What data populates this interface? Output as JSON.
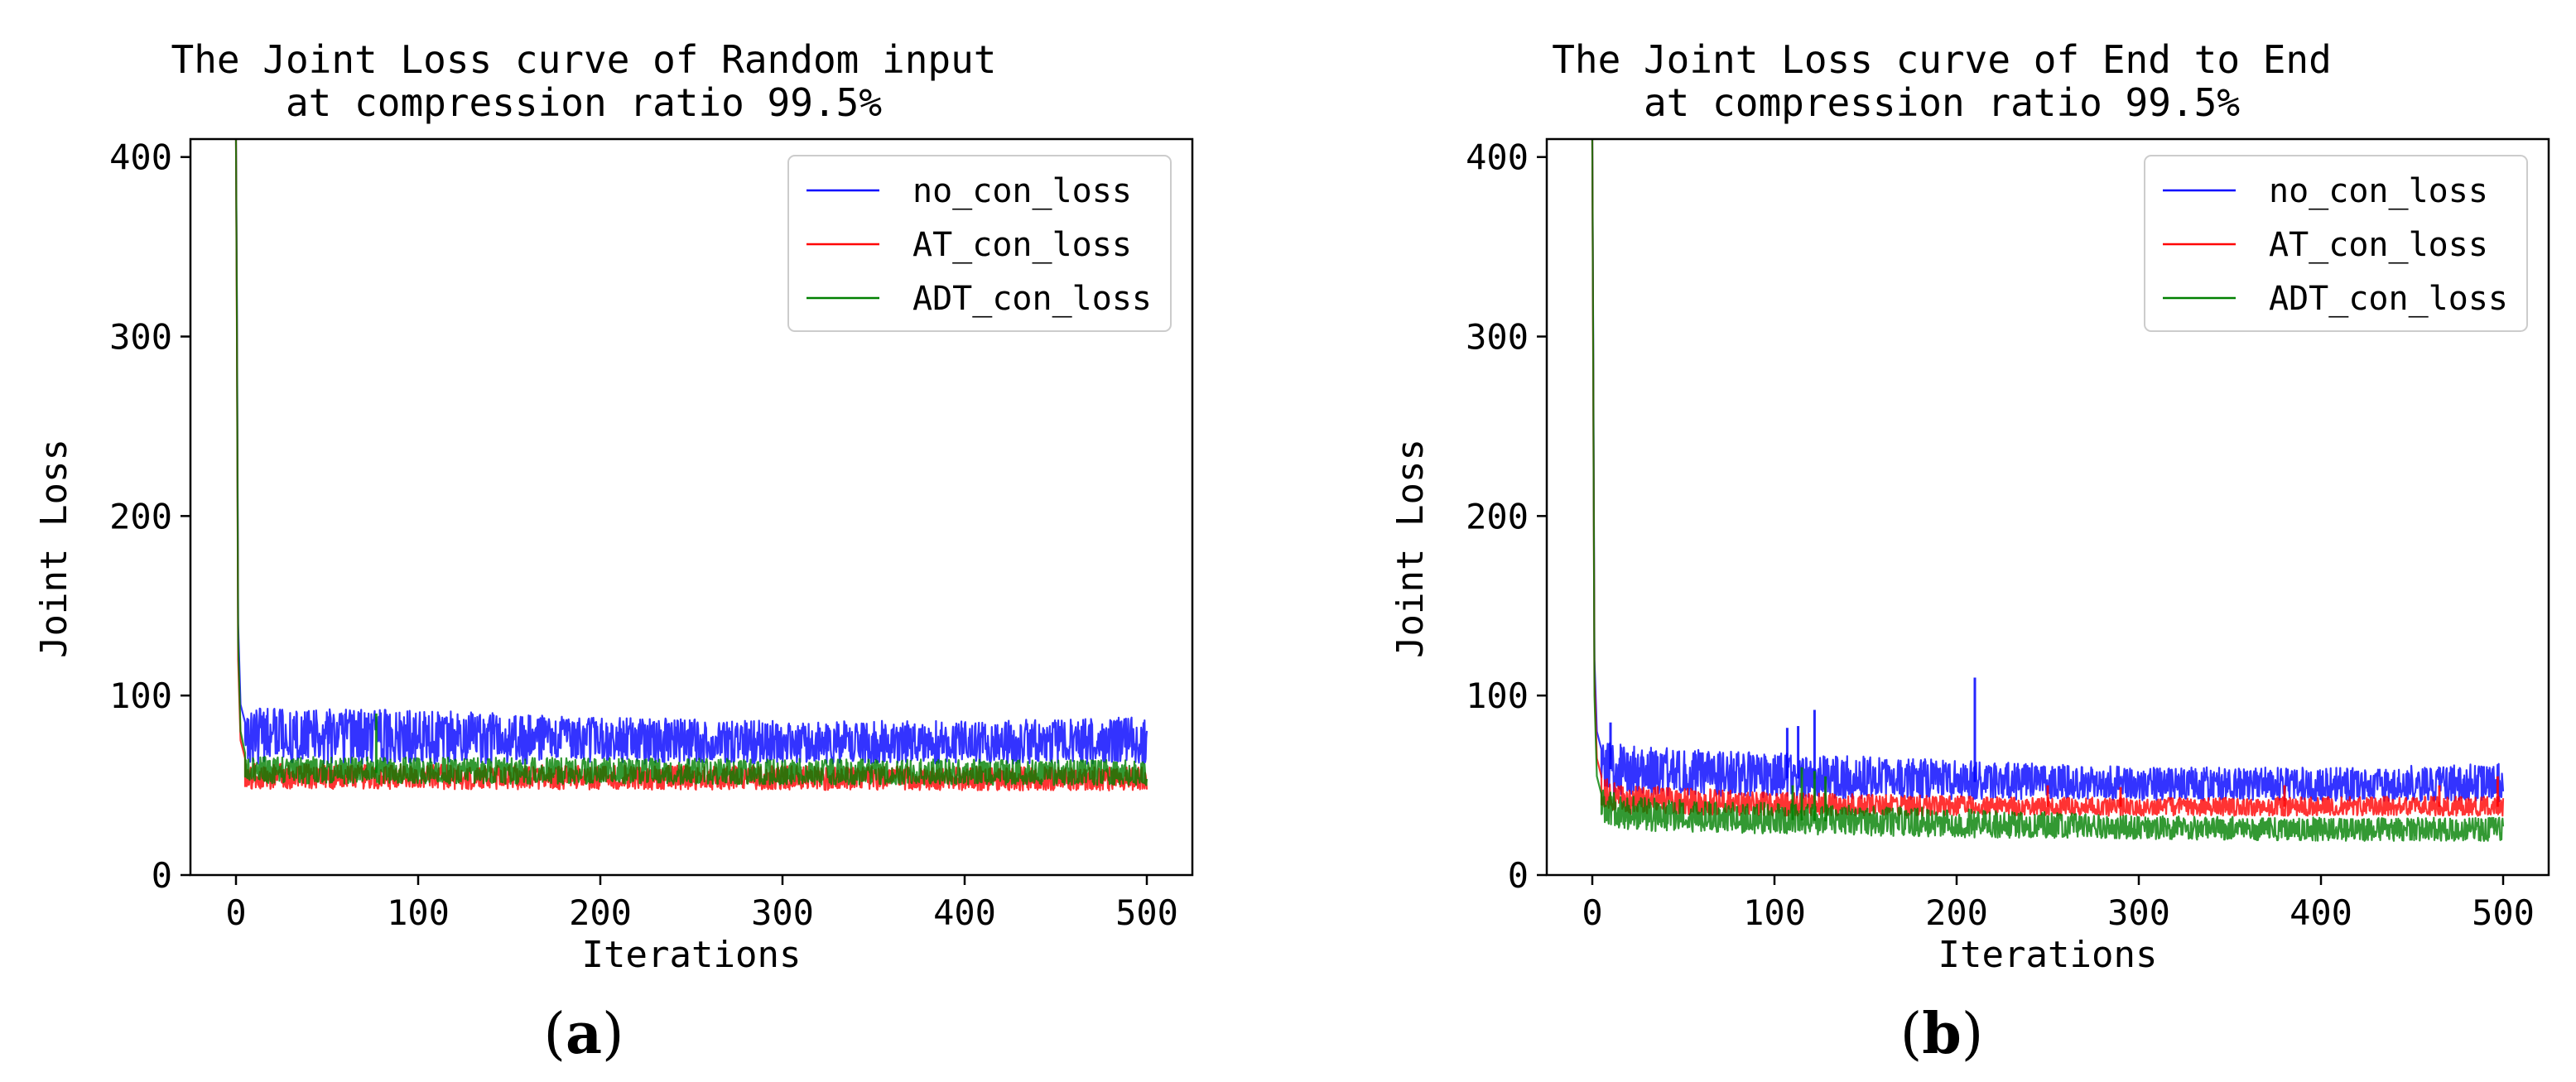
{
  "panels": [
    {
      "panel_label_open": "(",
      "panel_label_letter": "a",
      "panel_label_close": ")",
      "chart_data": {
        "type": "line",
        "title_line1": "The Joint Loss curve of Random input",
        "title_line2": "at compression ratio 99.5%",
        "xlabel": "Iterations",
        "ylabel": "Joint Loss",
        "xlim": [
          -25,
          525
        ],
        "ylim": [
          0,
          410
        ],
        "xticks": [
          0,
          100,
          200,
          300,
          400,
          500
        ],
        "yticks": [
          0,
          100,
          200,
          300,
          400
        ],
        "grid": false,
        "legend_position": "top-right",
        "series": [
          {
            "name": "no_con_loss",
            "color": "#0000ff",
            "start_points": [
              [
                0,
                410
              ],
              [
                0.5,
                320
              ],
              [
                1.2,
                140
              ],
              [
                2.5,
                95
              ],
              [
                5,
                85
              ]
            ],
            "band_center": [
              [
                5,
                80
              ],
              [
                100,
                77
              ],
              [
                200,
                75
              ],
              [
                300,
                74
              ],
              [
                400,
                73
              ],
              [
                500,
                73
              ]
            ],
            "band_low": [
              [
                5,
                62
              ],
              [
                500,
                62
              ]
            ],
            "band_high": [
              [
                5,
                93
              ],
              [
                100,
                92
              ],
              [
                200,
                88
              ],
              [
                300,
                86
              ],
              [
                400,
                86
              ],
              [
                500,
                88
              ]
            ],
            "spikes": []
          },
          {
            "name": "AT_con_loss",
            "color": "#ff0000",
            "start_points": [
              [
                0,
                410
              ],
              [
                0.5,
                300
              ],
              [
                1.2,
                120
              ],
              [
                2.5,
                75
              ],
              [
                5,
                65
              ]
            ],
            "band_center": [
              [
                5,
                55
              ],
              [
                500,
                53
              ]
            ],
            "band_low": [
              [
                5,
                48
              ],
              [
                500,
                47
              ]
            ],
            "band_high": [
              [
                5,
                62
              ],
              [
                500,
                60
              ]
            ],
            "spikes": []
          },
          {
            "name": "ADT_con_loss",
            "color": "#008000",
            "start_points": [
              [
                0,
                410
              ],
              [
                0.5,
                310
              ],
              [
                1.2,
                130
              ],
              [
                2.5,
                80
              ],
              [
                5,
                68
              ]
            ],
            "band_center": [
              [
                5,
                57
              ],
              [
                500,
                56
              ]
            ],
            "band_low": [
              [
                5,
                51
              ],
              [
                500,
                50
              ]
            ],
            "band_high": [
              [
                5,
                66
              ],
              [
                500,
                64
              ]
            ],
            "spikes": [
              [
                77,
                90
              ]
            ]
          }
        ]
      }
    },
    {
      "panel_label_open": "(",
      "panel_label_letter": "b",
      "panel_label_close": ")",
      "chart_data": {
        "type": "line",
        "title_line1": "The Joint Loss curve of End to End",
        "title_line2": "at compression ratio 99.5%",
        "xlabel": "Iterations",
        "ylabel": "Joint Loss",
        "xlim": [
          -25,
          525
        ],
        "ylim": [
          0,
          410
        ],
        "xticks": [
          0,
          100,
          200,
          300,
          400,
          500
        ],
        "yticks": [
          0,
          100,
          200,
          300,
          400
        ],
        "grid": false,
        "legend_position": "top-right",
        "series": [
          {
            "name": "no_con_loss",
            "color": "#0000ff",
            "start_points": [
              [
                0,
                410
              ],
              [
                0.5,
                300
              ],
              [
                1.2,
                120
              ],
              [
                2.5,
                80
              ],
              [
                5,
                70
              ]
            ],
            "band_center": [
              [
                5,
                60
              ],
              [
                20,
                57
              ],
              [
                50,
                55
              ],
              [
                100,
                54
              ],
              [
                200,
                52
              ],
              [
                300,
                50
              ],
              [
                400,
                50
              ],
              [
                500,
                50
              ]
            ],
            "band_low": [
              [
                5,
                45
              ],
              [
                100,
                43
              ],
              [
                200,
                42
              ],
              [
                500,
                41
              ]
            ],
            "band_high": [
              [
                5,
                75
              ],
              [
                20,
                72
              ],
              [
                100,
                68
              ],
              [
                200,
                64
              ],
              [
                300,
                60
              ],
              [
                400,
                60
              ],
              [
                500,
                62
              ]
            ],
            "spikes": [
              [
                10,
                85
              ],
              [
                107,
                82
              ],
              [
                113,
                83
              ],
              [
                122,
                92
              ],
              [
                210,
                110
              ]
            ]
          },
          {
            "name": "AT_con_loss",
            "color": "#ff0000",
            "start_points": [
              [
                0,
                410
              ],
              [
                0.5,
                280
              ],
              [
                1.2,
                110
              ],
              [
                2.5,
                65
              ],
              [
                5,
                55
              ]
            ],
            "band_center": [
              [
                5,
                46
              ],
              [
                20,
                42
              ],
              [
                50,
                40
              ],
              [
                100,
                39
              ],
              [
                200,
                38
              ],
              [
                300,
                38
              ],
              [
                500,
                38
              ]
            ],
            "band_low": [
              [
                5,
                38
              ],
              [
                20,
                34
              ],
              [
                100,
                33
              ],
              [
                500,
                33
              ]
            ],
            "band_high": [
              [
                5,
                55
              ],
              [
                20,
                50
              ],
              [
                100,
                46
              ],
              [
                200,
                44
              ],
              [
                300,
                43
              ],
              [
                500,
                44
              ]
            ],
            "spikes": [
              [
                250,
                50
              ],
              [
                290,
                49
              ],
              [
                380,
                50
              ],
              [
                465,
                50
              ],
              [
                497,
                55
              ]
            ]
          },
          {
            "name": "ADT_con_loss",
            "color": "#008000",
            "start_points": [
              [
                0,
                410
              ],
              [
                0.5,
                290
              ],
              [
                1.2,
                100
              ],
              [
                2.5,
                55
              ],
              [
                5,
                45
              ]
            ],
            "band_center": [
              [
                5,
                37
              ],
              [
                20,
                34
              ],
              [
                50,
                32
              ],
              [
                100,
                31
              ],
              [
                150,
                29
              ],
              [
                200,
                27
              ],
              [
                300,
                26
              ],
              [
                400,
                25
              ],
              [
                500,
                25
              ]
            ],
            "band_low": [
              [
                5,
                30
              ],
              [
                20,
                24
              ],
              [
                50,
                24
              ],
              [
                100,
                23
              ],
              [
                200,
                21
              ],
              [
                300,
                20
              ],
              [
                400,
                19
              ],
              [
                500,
                19
              ]
            ],
            "band_high": [
              [
                5,
                48
              ],
              [
                20,
                44
              ],
              [
                50,
                42
              ],
              [
                100,
                40
              ],
              [
                200,
                37
              ],
              [
                300,
                33
              ],
              [
                400,
                32
              ],
              [
                500,
                32
              ]
            ],
            "spikes": [
              [
                115,
                60
              ],
              [
                122,
                58
              ],
              [
                128,
                55
              ],
              [
                110,
                50
              ]
            ]
          }
        ]
      }
    }
  ]
}
